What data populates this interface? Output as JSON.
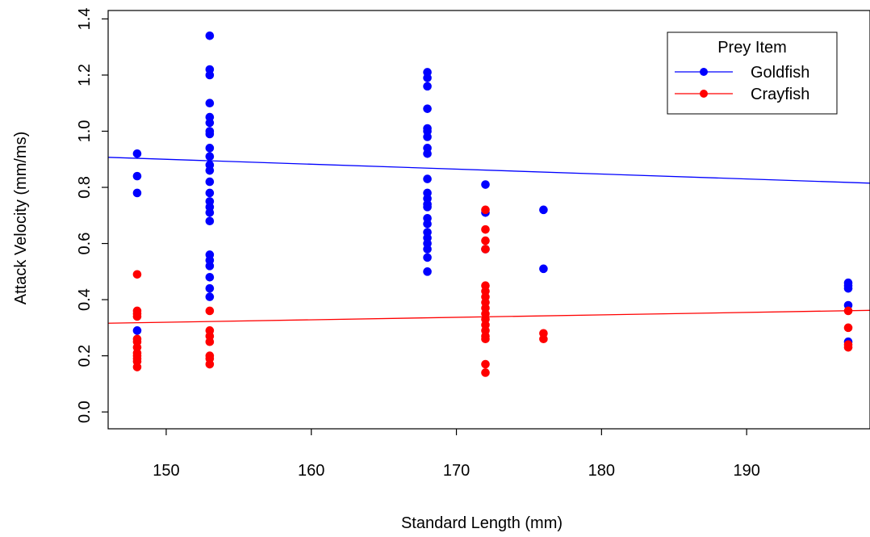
{
  "chart_data": {
    "type": "scatter",
    "title": "",
    "xlabel": "Standard Length (mm)",
    "ylabel": "Attack Velocity (mm/ms)",
    "xlim": [
      146,
      198.5
    ],
    "ylim": [
      -0.06,
      1.43
    ],
    "xticks": [
      150,
      160,
      170,
      180,
      190
    ],
    "xtick_labels": [
      "150",
      "160",
      "170",
      "180",
      "190"
    ],
    "yticks": [
      0.0,
      0.2,
      0.4,
      0.6,
      0.8,
      1.0,
      1.2,
      1.4
    ],
    "ytick_labels": [
      "0.0",
      "0.2",
      "0.4",
      "0.6",
      "0.8",
      "1.0",
      "1.2",
      "1.4"
    ],
    "grid": false,
    "legend": {
      "title": "Prey Item",
      "position": "top-right"
    },
    "series": [
      {
        "name": "Goldfish",
        "color": "#0000ff",
        "points": [
          [
            148,
            0.92
          ],
          [
            148,
            0.84
          ],
          [
            148,
            0.78
          ],
          [
            148,
            0.29
          ],
          [
            153,
            1.34
          ],
          [
            153,
            1.22
          ],
          [
            153,
            1.2
          ],
          [
            153,
            1.1
          ],
          [
            153,
            1.05
          ],
          [
            153,
            1.03
          ],
          [
            153,
            1.0
          ],
          [
            153,
            0.99
          ],
          [
            153,
            0.94
          ],
          [
            153,
            0.91
          ],
          [
            153,
            0.88
          ],
          [
            153,
            0.86
          ],
          [
            153,
            0.82
          ],
          [
            153,
            0.78
          ],
          [
            153,
            0.75
          ],
          [
            153,
            0.73
          ],
          [
            153,
            0.71
          ],
          [
            153,
            0.68
          ],
          [
            153,
            0.56
          ],
          [
            153,
            0.54
          ],
          [
            153,
            0.52
          ],
          [
            153,
            0.48
          ],
          [
            153,
            0.44
          ],
          [
            153,
            0.41
          ],
          [
            168,
            1.21
          ],
          [
            168,
            1.19
          ],
          [
            168,
            1.16
          ],
          [
            168,
            1.08
          ],
          [
            168,
            1.01
          ],
          [
            168,
            1.0
          ],
          [
            168,
            0.98
          ],
          [
            168,
            0.94
          ],
          [
            168,
            0.92
          ],
          [
            168,
            0.83
          ],
          [
            168,
            0.78
          ],
          [
            168,
            0.76
          ],
          [
            168,
            0.74
          ],
          [
            168,
            0.73
          ],
          [
            168,
            0.69
          ],
          [
            168,
            0.67
          ],
          [
            168,
            0.64
          ],
          [
            168,
            0.62
          ],
          [
            168,
            0.6
          ],
          [
            168,
            0.58
          ],
          [
            168,
            0.55
          ],
          [
            168,
            0.5
          ],
          [
            172,
            0.81
          ],
          [
            172,
            0.71
          ],
          [
            172,
            0.58
          ],
          [
            176,
            0.72
          ],
          [
            176,
            0.51
          ],
          [
            197,
            0.46
          ],
          [
            197,
            0.45
          ],
          [
            197,
            0.44
          ],
          [
            197,
            0.38
          ],
          [
            197,
            0.25
          ]
        ],
        "fit": {
          "x": [
            146,
            198.5
          ],
          "y": [
            0.907,
            0.815
          ]
        }
      },
      {
        "name": "Crayfish",
        "color": "#ff0000",
        "points": [
          [
            148,
            0.49
          ],
          [
            148,
            0.36
          ],
          [
            148,
            0.35
          ],
          [
            148,
            0.34
          ],
          [
            148,
            0.26
          ],
          [
            148,
            0.25
          ],
          [
            148,
            0.23
          ],
          [
            148,
            0.21
          ],
          [
            148,
            0.2
          ],
          [
            148,
            0.19
          ],
          [
            148,
            0.18
          ],
          [
            148,
            0.16
          ],
          [
            153,
            0.36
          ],
          [
            153,
            0.29
          ],
          [
            153,
            0.27
          ],
          [
            153,
            0.25
          ],
          [
            153,
            0.2
          ],
          [
            153,
            0.19
          ],
          [
            153,
            0.17
          ],
          [
            172,
            0.72
          ],
          [
            172,
            0.65
          ],
          [
            172,
            0.61
          ],
          [
            172,
            0.58
          ],
          [
            172,
            0.45
          ],
          [
            172,
            0.43
          ],
          [
            172,
            0.41
          ],
          [
            172,
            0.39
          ],
          [
            172,
            0.37
          ],
          [
            172,
            0.35
          ],
          [
            172,
            0.33
          ],
          [
            172,
            0.31
          ],
          [
            172,
            0.29
          ],
          [
            172,
            0.27
          ],
          [
            172,
            0.26
          ],
          [
            172,
            0.17
          ],
          [
            172,
            0.14
          ],
          [
            176,
            0.28
          ],
          [
            176,
            0.26
          ],
          [
            197,
            0.36
          ],
          [
            197,
            0.3
          ],
          [
            197,
            0.24
          ],
          [
            197,
            0.23
          ]
        ],
        "fit": {
          "x": [
            146,
            198.5
          ],
          "y": [
            0.316,
            0.362
          ]
        }
      }
    ]
  }
}
